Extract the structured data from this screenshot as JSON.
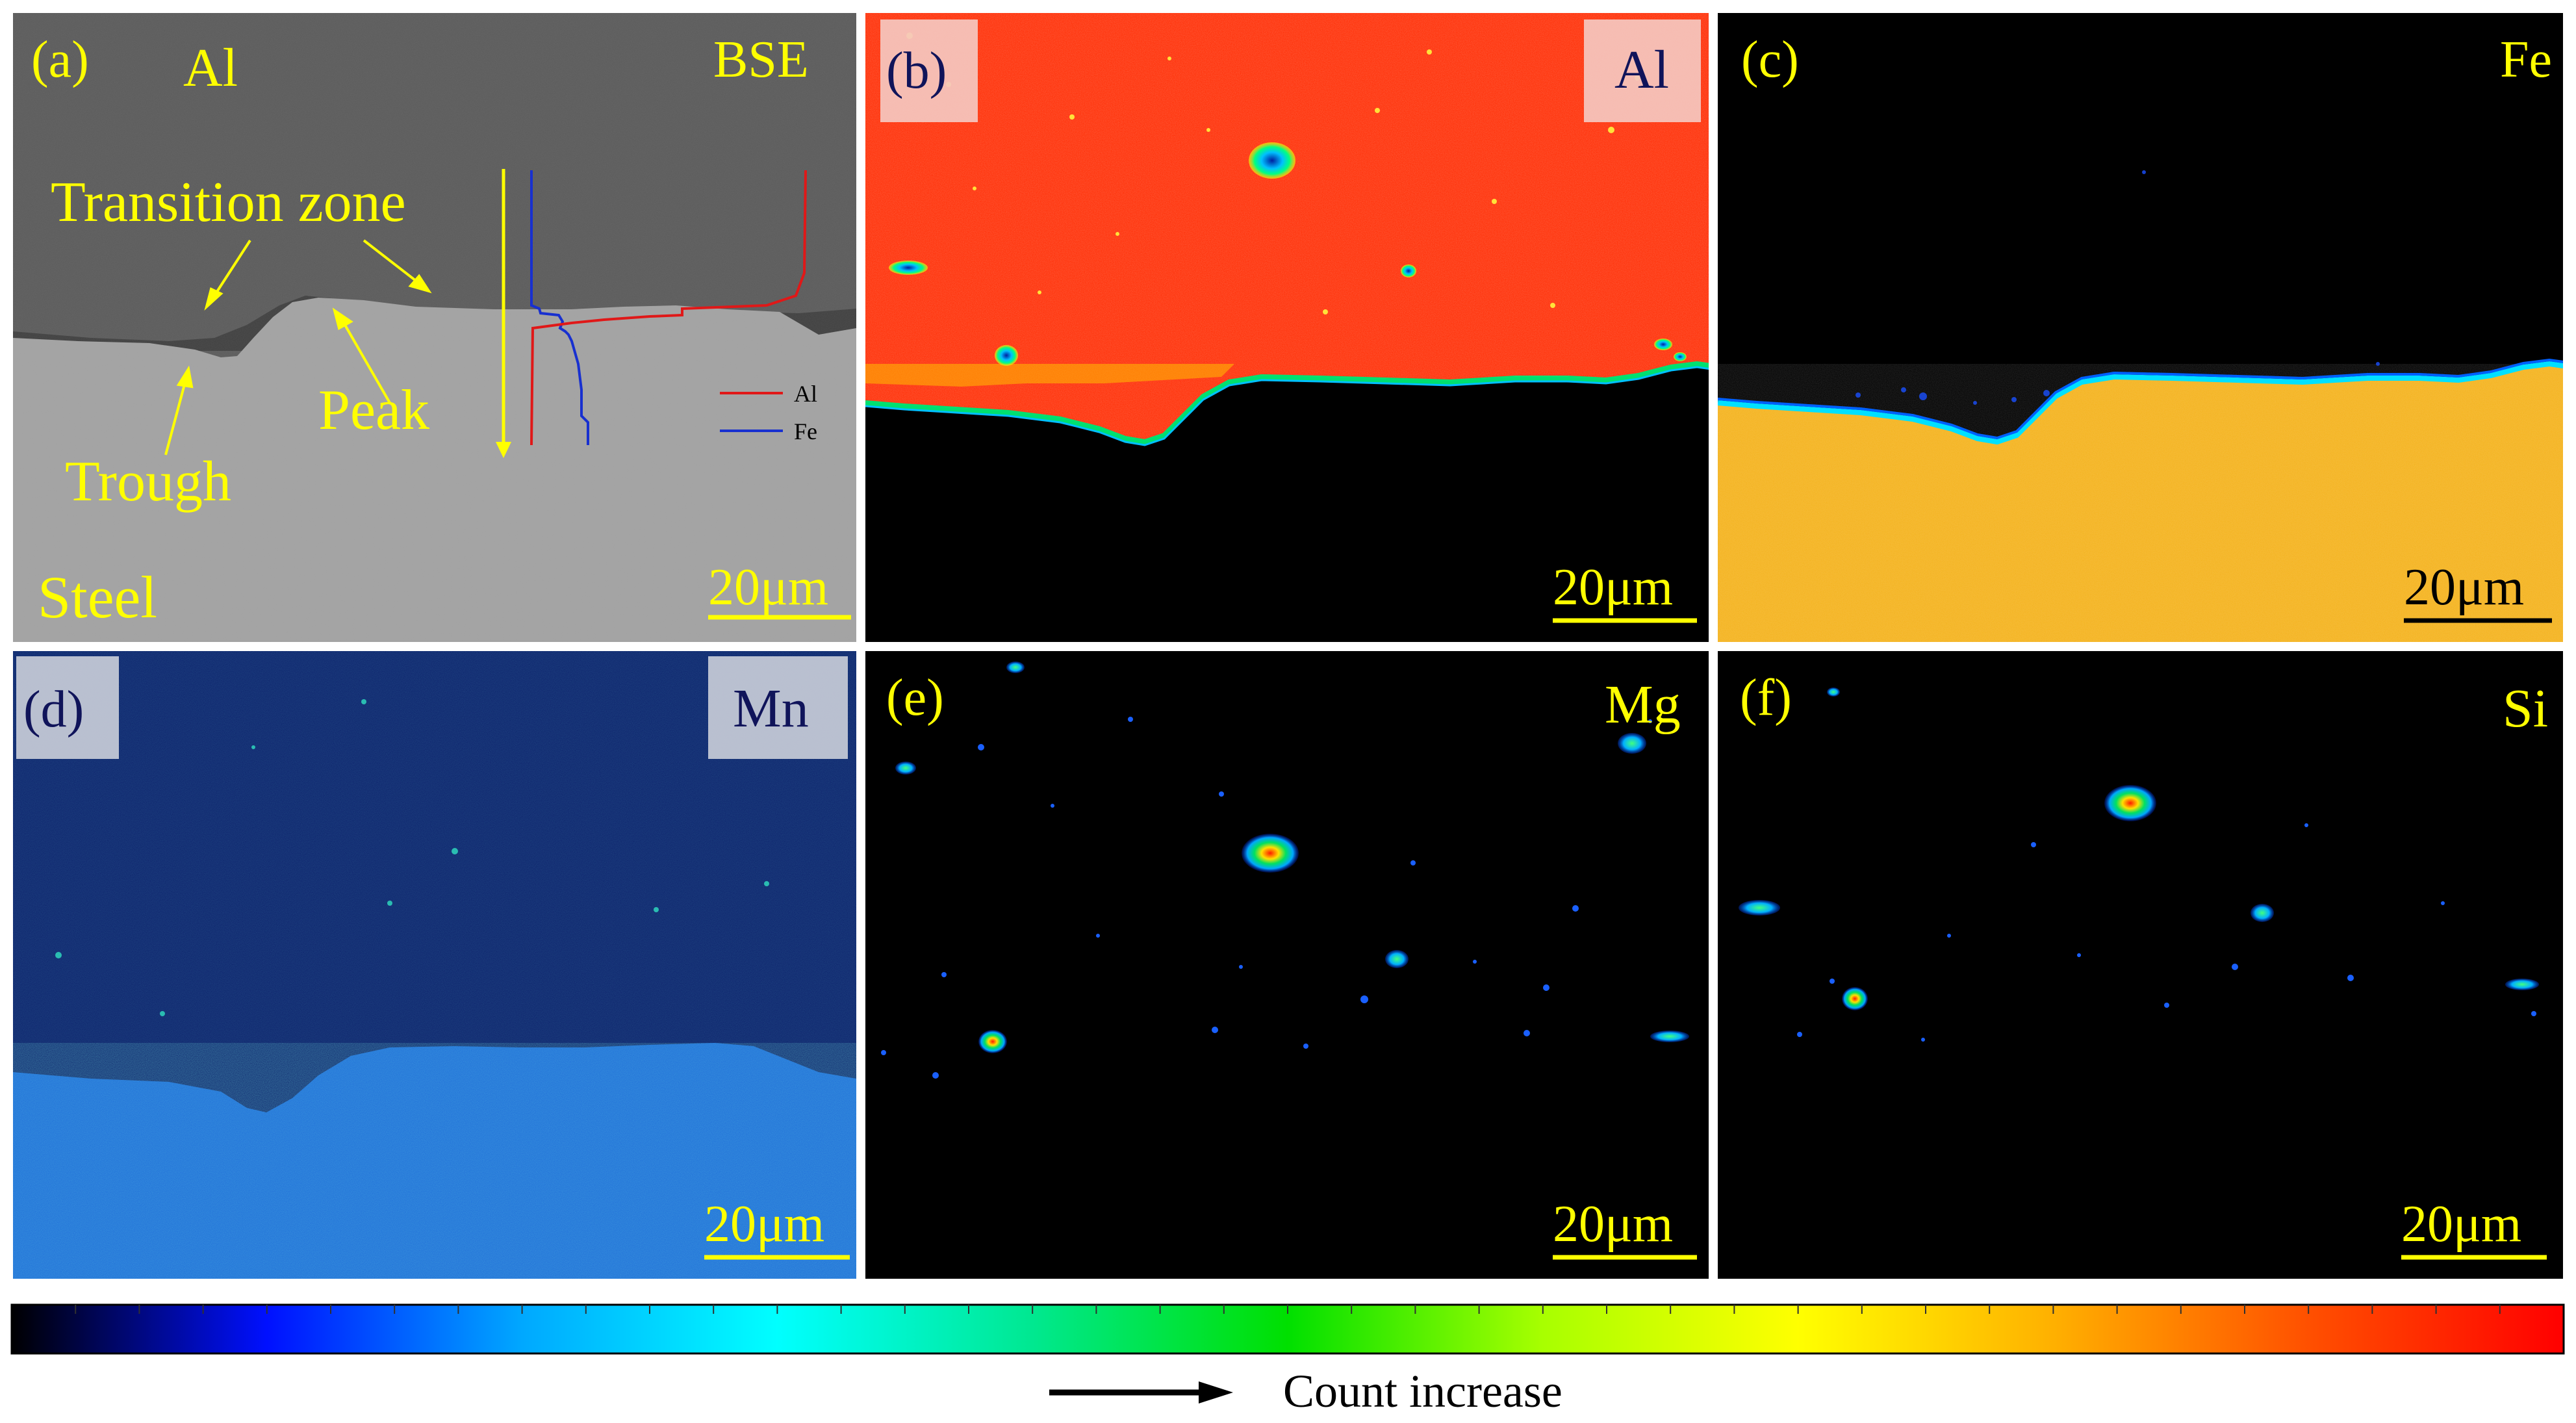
{
  "panels": [
    {
      "id": "a",
      "panel_label": "(a)",
      "element_label": "BSE",
      "scale_bar": "20μm"
    },
    {
      "id": "b",
      "panel_label": "(b)",
      "element_label": "Al",
      "scale_bar": "20μm"
    },
    {
      "id": "c",
      "panel_label": "(c)",
      "element_label": "Fe",
      "scale_bar": "20μm"
    },
    {
      "id": "d",
      "panel_label": "(d)",
      "element_label": "Mn",
      "scale_bar": "20μm"
    },
    {
      "id": "e",
      "panel_label": "(e)",
      "element_label": "Mg",
      "scale_bar": "20μm"
    },
    {
      "id": "f",
      "panel_label": "(f)",
      "element_label": "Si",
      "scale_bar": "20μm"
    }
  ],
  "bse_annotations": {
    "top_material": "Al",
    "bottom_material": "Steel",
    "transition_zone": "Transition zone",
    "peak": "Peak",
    "trough": "Trough",
    "legend": [
      {
        "label": "Al",
        "color": "#e01818"
      },
      {
        "label": "Fe",
        "color": "#1830d0"
      }
    ]
  },
  "colorbar": {
    "caption": "Count increase",
    "stops": [
      "#000000",
      "#0010ff",
      "#00a8ff",
      "#00ffff",
      "#00e890",
      "#00e000",
      "#a8ff00",
      "#ffff00",
      "#ffb000",
      "#ff5000",
      "#ff0000"
    ]
  },
  "colors": {
    "label_yellow": "#ffff00",
    "label_navy": "#10145a",
    "al_map": "#ff2a00",
    "fe_map": "#f4b21c",
    "mn_steel": "#1d6ad8",
    "mn_al": "#0b1e6a",
    "bse_al": "#5a5a5a",
    "bse_steel": "#a4a4a4"
  }
}
